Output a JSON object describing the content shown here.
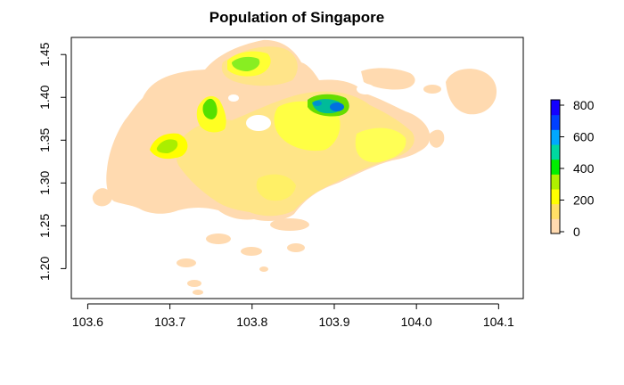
{
  "title": "Population of Singapore",
  "chart_data": {
    "type": "heatmap",
    "title": "Population of Singapore",
    "xlabel": "",
    "ylabel": "",
    "x_range": [
      103.58,
      104.13
    ],
    "y_range": [
      1.165,
      1.47
    ],
    "x_ticks": [
      "103.6",
      "103.7",
      "103.8",
      "103.9",
      "104.0",
      "104.1"
    ],
    "y_ticks": [
      "1.20",
      "1.25",
      "1.30",
      "1.35",
      "1.40",
      "1.45"
    ],
    "legend": {
      "position": "right",
      "ticks": [
        "0",
        "200",
        "400",
        "600",
        "800"
      ],
      "range": [
        0,
        800
      ],
      "colors": [
        "#FFDAB0",
        "#FFE066",
        "#FFFF00",
        "#B0F000",
        "#00EE00",
        "#00D8A0",
        "#00A8FF",
        "#0040FF",
        "#1400FF"
      ]
    },
    "land_color": "#FFDAB0",
    "hotspots": [
      {
        "lon": 103.78,
        "lat": 1.43,
        "value": 380
      },
      {
        "lon": 103.745,
        "lat": 1.385,
        "value": 430
      },
      {
        "lon": 103.705,
        "lat": 1.34,
        "value": 400
      },
      {
        "lon": 103.88,
        "lat": 1.392,
        "value": 720
      }
    ]
  }
}
